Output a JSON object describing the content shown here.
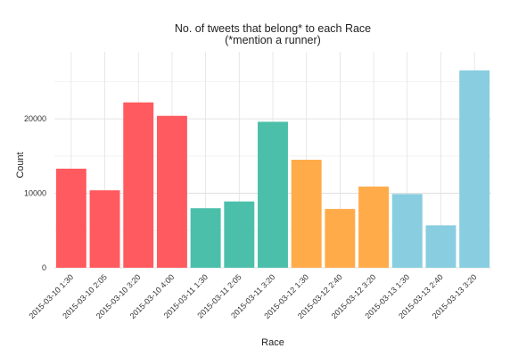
{
  "chart_data": {
    "type": "bar",
    "title": "No. of tweets that belong* to each Race",
    "subtitle": "(*mention a runner)",
    "xlabel": "Race",
    "ylabel": "Count",
    "ylim": [
      0,
      29000
    ],
    "yticks": [
      0,
      10000,
      20000
    ],
    "grid": true,
    "categories": [
      "2015-03-10 1:30",
      "2015-03-10 2:05",
      "2015-03-10 3:20",
      "2015-03-10 4:00",
      "2015-03-11 1:30",
      "2015-03-11 2:05",
      "2015-03-11 3:20",
      "2015-03-12 1:30",
      "2015-03-12 2:40",
      "2015-03-12 3:20",
      "2015-03-13 1:30",
      "2015-03-13 2:40",
      "2015-03-13 3:20"
    ],
    "values": [
      13300,
      10400,
      22200,
      20400,
      8000,
      8900,
      19600,
      14500,
      7900,
      10900,
      9900,
      5700,
      26500
    ],
    "colors": [
      "#ff5a5f",
      "#ff5a5f",
      "#ff5a5f",
      "#ff5a5f",
      "#4cbfaa",
      "#4cbfaa",
      "#4cbfaa",
      "#ffab4a",
      "#ffab4a",
      "#ffab4a",
      "#89cde0",
      "#89cde0",
      "#89cde0"
    ]
  }
}
